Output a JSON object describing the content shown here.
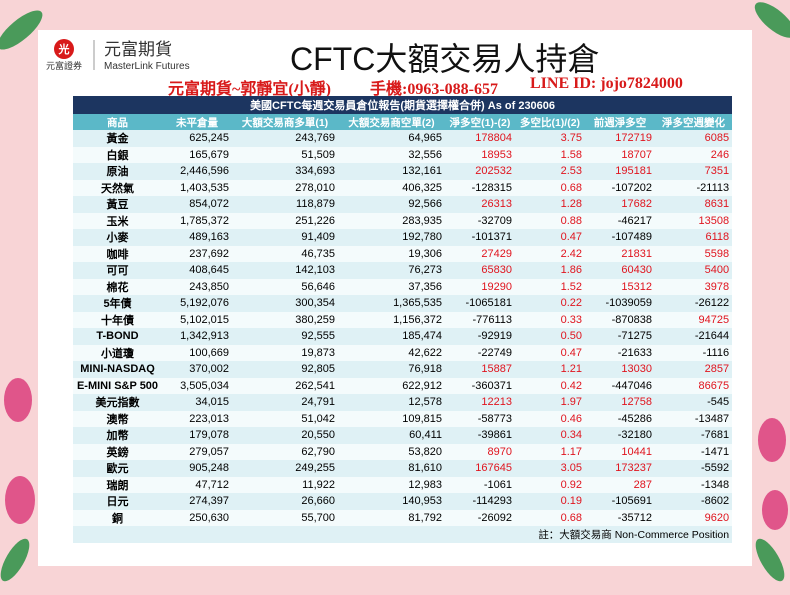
{
  "header": {
    "logo_mark": "光",
    "logo_text": "元富證券",
    "brand": "元富期貨",
    "brand_en": "MasterLink Futures",
    "title": "CFTC大額交易人持倉"
  },
  "contact": {
    "name": "元富期貨~郭靜宜(小靜)",
    "phone": "手機:0963-088-657",
    "line": "LINE ID: jojo7824000"
  },
  "table": {
    "title": "美國CFTC每週交易員倉位報告(期貨選擇權合併) As of  230606",
    "columns": [
      "商品",
      "未平倉量",
      "大額交易商多單(1)",
      "大額交易商空單(2)",
      "淨多空(1)-(2)",
      "多空比(1)/(2)",
      "前週淨多空",
      "淨多空週變化"
    ],
    "rows": [
      [
        "黃金",
        "625,245",
        "243,769",
        "64,965",
        "178804",
        "3.75",
        "172719",
        "6085"
      ],
      [
        "白銀",
        "165,679",
        "51,509",
        "32,556",
        "18953",
        "1.58",
        "18707",
        "246"
      ],
      [
        "原油",
        "2,446,596",
        "334,693",
        "132,161",
        "202532",
        "2.53",
        "195181",
        "7351"
      ],
      [
        "天然氣",
        "1,403,535",
        "278,010",
        "406,325",
        "-128315",
        "0.68",
        "-107202",
        "-21113"
      ],
      [
        "黃豆",
        "854,072",
        "118,879",
        "92,566",
        "26313",
        "1.28",
        "17682",
        "8631"
      ],
      [
        "玉米",
        "1,785,372",
        "251,226",
        "283,935",
        "-32709",
        "0.88",
        "-46217",
        "13508"
      ],
      [
        "小麥",
        "489,163",
        "91,409",
        "192,780",
        "-101371",
        "0.47",
        "-107489",
        "6118"
      ],
      [
        "咖啡",
        "237,692",
        "46,735",
        "19,306",
        "27429",
        "2.42",
        "21831",
        "5598"
      ],
      [
        "可可",
        "408,645",
        "142,103",
        "76,273",
        "65830",
        "1.86",
        "60430",
        "5400"
      ],
      [
        "棉花",
        "243,850",
        "56,646",
        "37,356",
        "19290",
        "1.52",
        "15312",
        "3978"
      ],
      [
        "5年債",
        "5,192,076",
        "300,354",
        "1,365,535",
        "-1065181",
        "0.22",
        "-1039059",
        "-26122"
      ],
      [
        "十年債",
        "5,102,015",
        "380,259",
        "1,156,372",
        "-776113",
        "0.33",
        "-870838",
        "94725"
      ],
      [
        "T-BOND",
        "1,342,913",
        "92,555",
        "185,474",
        "-92919",
        "0.50",
        "-71275",
        "-21644"
      ],
      [
        "小道瓊",
        "100,669",
        "19,873",
        "42,622",
        "-22749",
        "0.47",
        "-21633",
        "-1116"
      ],
      [
        "MINI-NASDAQ",
        "370,002",
        "92,805",
        "76,918",
        "15887",
        "1.21",
        "13030",
        "2857"
      ],
      [
        "E-MINI S&P 500",
        "3,505,034",
        "262,541",
        "622,912",
        "-360371",
        "0.42",
        "-447046",
        "86675"
      ],
      [
        "美元指數",
        "34,015",
        "24,791",
        "12,578",
        "12213",
        "1.97",
        "12758",
        "-545"
      ],
      [
        "澳幣",
        "223,013",
        "51,042",
        "109,815",
        "-58773",
        "0.46",
        "-45286",
        "-13487"
      ],
      [
        "加幣",
        "179,078",
        "20,550",
        "60,411",
        "-39861",
        "0.34",
        "-32180",
        "-7681"
      ],
      [
        "英鎊",
        "279,057",
        "62,790",
        "53,820",
        "8970",
        "1.17",
        "10441",
        "-1471"
      ],
      [
        "歐元",
        "905,248",
        "249,255",
        "81,610",
        "167645",
        "3.05",
        "173237",
        "-5592"
      ],
      [
        "瑞朗",
        "47,712",
        "11,922",
        "12,983",
        "-1061",
        "0.92",
        "287",
        "-1348"
      ],
      [
        "日元",
        "274,397",
        "26,660",
        "140,953",
        "-114293",
        "0.19",
        "-105691",
        "-8602"
      ],
      [
        "銅",
        "250,630",
        "55,700",
        "81,792",
        "-26092",
        "0.68",
        "-35712",
        "9620"
      ]
    ],
    "note": "註：大額交易商 Non-Commerce Position"
  }
}
